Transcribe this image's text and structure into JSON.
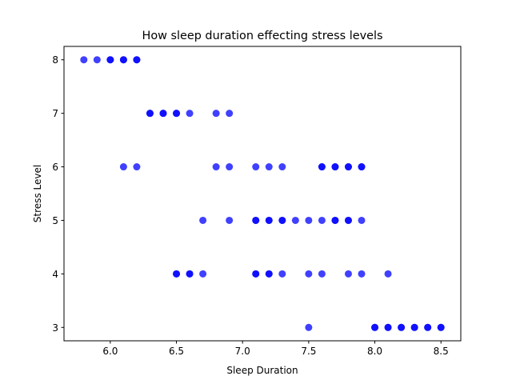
{
  "chart_data": {
    "type": "scatter",
    "title": "How sleep duration effecting stress levels",
    "xlabel": "Sleep Duration",
    "ylabel": "Stress Level",
    "xlim": [
      5.65,
      8.65
    ],
    "ylim": [
      2.75,
      8.25
    ],
    "xticks": [
      6.0,
      6.5,
      7.0,
      7.5,
      8.0,
      8.5
    ],
    "xtick_labels": [
      "6.0",
      "6.5",
      "7.0",
      "7.5",
      "8.0",
      "8.5"
    ],
    "yticks": [
      3,
      4,
      5,
      6,
      7,
      8
    ],
    "ytick_labels": [
      "3",
      "4",
      "5",
      "6",
      "7",
      "8"
    ],
    "grid": false,
    "marker_color": "#0000ff",
    "marker_opacity": 0.75,
    "points": [
      {
        "x": 5.8,
        "y": 8
      },
      {
        "x": 5.9,
        "y": 8
      },
      {
        "x": 6.0,
        "y": 8
      },
      {
        "x": 6.0,
        "y": 8
      },
      {
        "x": 6.1,
        "y": 8
      },
      {
        "x": 6.1,
        "y": 8
      },
      {
        "x": 6.2,
        "y": 8
      },
      {
        "x": 6.2,
        "y": 8
      },
      {
        "x": 6.3,
        "y": 7
      },
      {
        "x": 6.3,
        "y": 7
      },
      {
        "x": 6.4,
        "y": 7
      },
      {
        "x": 6.4,
        "y": 7
      },
      {
        "x": 6.5,
        "y": 7
      },
      {
        "x": 6.5,
        "y": 7
      },
      {
        "x": 6.6,
        "y": 7
      },
      {
        "x": 6.8,
        "y": 7
      },
      {
        "x": 6.9,
        "y": 7
      },
      {
        "x": 6.1,
        "y": 6
      },
      {
        "x": 6.2,
        "y": 6
      },
      {
        "x": 6.8,
        "y": 6
      },
      {
        "x": 6.9,
        "y": 6
      },
      {
        "x": 7.1,
        "y": 6
      },
      {
        "x": 7.2,
        "y": 6
      },
      {
        "x": 7.3,
        "y": 6
      },
      {
        "x": 7.6,
        "y": 6
      },
      {
        "x": 7.6,
        "y": 6
      },
      {
        "x": 7.7,
        "y": 6
      },
      {
        "x": 7.7,
        "y": 6
      },
      {
        "x": 7.8,
        "y": 6
      },
      {
        "x": 7.8,
        "y": 6
      },
      {
        "x": 7.9,
        "y": 6
      },
      {
        "x": 7.9,
        "y": 6
      },
      {
        "x": 6.7,
        "y": 5
      },
      {
        "x": 6.9,
        "y": 5
      },
      {
        "x": 7.1,
        "y": 5
      },
      {
        "x": 7.1,
        "y": 5
      },
      {
        "x": 7.2,
        "y": 5
      },
      {
        "x": 7.2,
        "y": 5
      },
      {
        "x": 7.3,
        "y": 5
      },
      {
        "x": 7.3,
        "y": 5
      },
      {
        "x": 7.4,
        "y": 5
      },
      {
        "x": 7.5,
        "y": 5
      },
      {
        "x": 7.6,
        "y": 5
      },
      {
        "x": 7.7,
        "y": 5
      },
      {
        "x": 7.7,
        "y": 5
      },
      {
        "x": 7.8,
        "y": 5
      },
      {
        "x": 7.8,
        "y": 5
      },
      {
        "x": 7.9,
        "y": 5
      },
      {
        "x": 6.5,
        "y": 4
      },
      {
        "x": 6.5,
        "y": 4
      },
      {
        "x": 6.6,
        "y": 4
      },
      {
        "x": 6.6,
        "y": 4
      },
      {
        "x": 6.7,
        "y": 4
      },
      {
        "x": 7.1,
        "y": 4
      },
      {
        "x": 7.1,
        "y": 4
      },
      {
        "x": 7.2,
        "y": 4
      },
      {
        "x": 7.2,
        "y": 4
      },
      {
        "x": 7.3,
        "y": 4
      },
      {
        "x": 7.5,
        "y": 4
      },
      {
        "x": 7.6,
        "y": 4
      },
      {
        "x": 7.8,
        "y": 4
      },
      {
        "x": 7.9,
        "y": 4
      },
      {
        "x": 8.1,
        "y": 4
      },
      {
        "x": 7.5,
        "y": 3
      },
      {
        "x": 8.0,
        "y": 3
      },
      {
        "x": 8.0,
        "y": 3
      },
      {
        "x": 8.1,
        "y": 3
      },
      {
        "x": 8.1,
        "y": 3
      },
      {
        "x": 8.2,
        "y": 3
      },
      {
        "x": 8.2,
        "y": 3
      },
      {
        "x": 8.3,
        "y": 3
      },
      {
        "x": 8.3,
        "y": 3
      },
      {
        "x": 8.4,
        "y": 3
      },
      {
        "x": 8.4,
        "y": 3
      },
      {
        "x": 8.5,
        "y": 3
      },
      {
        "x": 8.5,
        "y": 3
      }
    ]
  }
}
